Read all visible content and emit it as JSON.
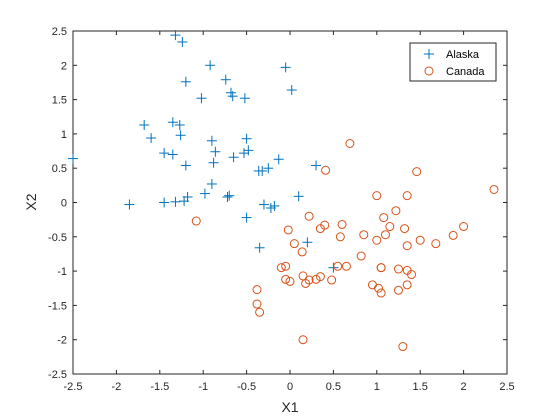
{
  "chart_data": {
    "type": "scatter",
    "xlabel": "X1",
    "ylabel": "X2",
    "xlim": [
      -2.5,
      2.5
    ],
    "ylim": [
      -2.5,
      2.5
    ],
    "xticks": [
      "-2.5",
      "-2",
      "-1.5",
      "-1",
      "-0.5",
      "0",
      "0.5",
      "1",
      "1.5",
      "2",
      "2.5"
    ],
    "yticks": [
      "-2.5",
      "-2",
      "-1.5",
      "-1",
      "-0.5",
      "0",
      "0.5",
      "1",
      "1.5",
      "2",
      "2.5"
    ],
    "grid": false,
    "legend_position": "top-right",
    "series": [
      {
        "name": "Alaska",
        "marker": "plus",
        "color": "#0072BD",
        "x": [
          -1.32,
          -1.24,
          -0.92,
          -0.74,
          -0.68,
          -0.66,
          -1.2,
          -1.02,
          -0.52,
          -0.05,
          0.02,
          -1.68,
          -1.6,
          -1.35,
          -1.27,
          -1.26,
          -0.9,
          -0.5,
          -0.48,
          -0.65,
          -0.88,
          -1.45,
          -1.35,
          -0.86,
          -0.53,
          -0.32,
          -0.25,
          -0.13,
          -1.2,
          -0.9,
          -0.7,
          -0.36,
          -0.22,
          -0.18,
          0.3,
          -1.85,
          -1.45,
          -1.32,
          -1.18,
          -0.98,
          -0.72,
          -0.5,
          -0.3,
          0.1,
          -0.35,
          0.2,
          0.5,
          -2.5,
          -1.22
        ],
        "y": [
          2.44,
          2.34,
          2.0,
          1.79,
          1.6,
          1.55,
          1.76,
          1.52,
          1.52,
          1.97,
          1.64,
          1.13,
          0.94,
          1.17,
          1.13,
          0.98,
          0.9,
          0.93,
          0.76,
          0.66,
          0.58,
          0.72,
          0.7,
          0.74,
          0.72,
          0.46,
          0.5,
          0.63,
          0.54,
          0.27,
          0.1,
          0.46,
          -0.08,
          -0.05,
          0.54,
          -0.03,
          0.0,
          0.01,
          0.08,
          0.13,
          0.08,
          -0.22,
          -0.03,
          0.09,
          -0.66,
          -0.58,
          -0.95,
          0.64,
          0.02
        ]
      },
      {
        "name": "Canada",
        "marker": "circle",
        "color": "#D95319",
        "x": [
          0.69,
          0.41,
          1.46,
          2.35,
          1.0,
          1.35,
          1.22,
          1.08,
          0.6,
          0.4,
          0.22,
          -1.08,
          -0.02,
          0.35,
          0.85,
          0.58,
          1.1,
          1.32,
          1.5,
          1.35,
          1.68,
          1.88,
          2.0,
          0.82,
          1.0,
          1.05,
          0.14,
          0.55,
          -0.1,
          -0.05,
          0.05,
          0.15,
          0.65,
          1.05,
          1.25,
          1.35,
          1.4,
          0.18,
          0.22,
          0.3,
          0.35,
          0.48,
          -0.05,
          0.95,
          1.25,
          1.05,
          1.35,
          -0.38,
          -0.38,
          1.02,
          0.15,
          1.3,
          -0.35,
          0.0,
          1.15
        ],
        "y": [
          0.86,
          0.47,
          0.45,
          0.19,
          0.1,
          0.1,
          -0.12,
          -0.22,
          -0.32,
          -0.33,
          -0.2,
          -0.27,
          -0.4,
          -0.38,
          -0.47,
          -0.5,
          -0.47,
          -0.38,
          -0.55,
          -0.63,
          -0.6,
          -0.48,
          -0.35,
          -0.78,
          -0.55,
          -0.95,
          -0.72,
          -0.93,
          -0.95,
          -0.93,
          -0.6,
          -1.07,
          -0.93,
          -0.95,
          -0.97,
          -0.99,
          -1.05,
          -1.18,
          -1.13,
          -1.12,
          -1.08,
          -1.13,
          -1.12,
          -1.2,
          -1.28,
          -1.32,
          -1.2,
          -1.27,
          -1.48,
          -1.25,
          -2.0,
          -2.1,
          -1.6,
          -1.15,
          -0.35
        ]
      }
    ]
  }
}
